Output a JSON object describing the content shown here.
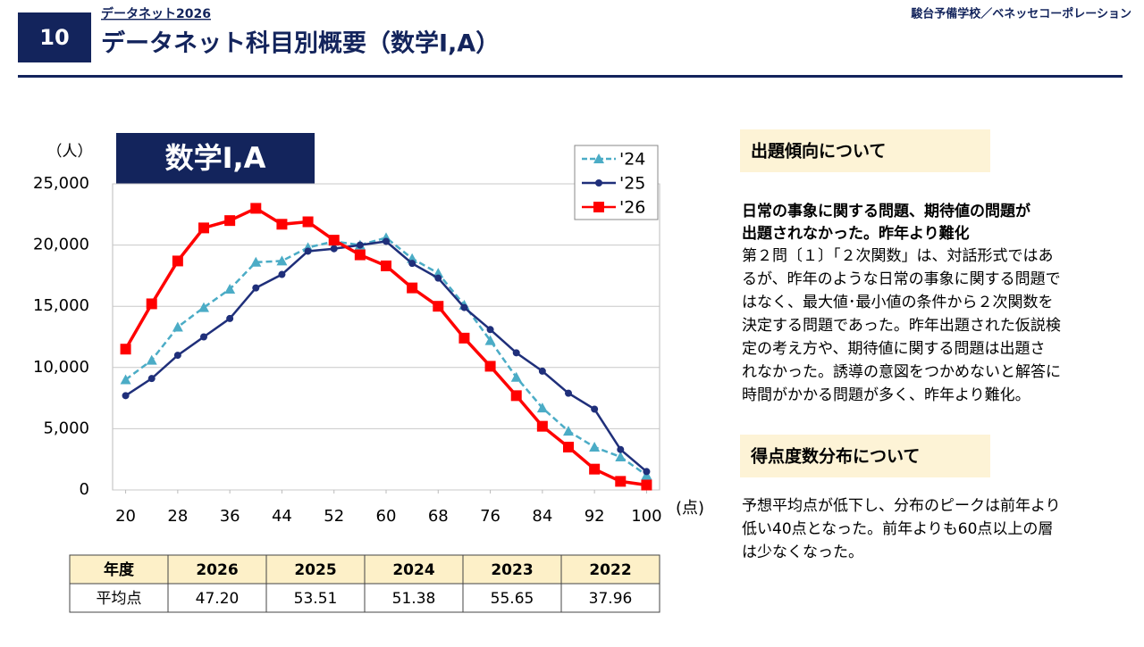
{
  "header": {
    "number": "10",
    "kicker": "データネット2026",
    "title": "データネット科目別概要（数学Ⅰ,A）",
    "source": "駿台予備学校／ベネッセコーポレーション"
  },
  "chart_data": {
    "type": "line",
    "title": "数学Ⅰ,A",
    "y_label": "（人）",
    "x_label": "(点)",
    "x": [
      20,
      24,
      28,
      32,
      36,
      40,
      44,
      48,
      52,
      56,
      60,
      64,
      68,
      72,
      76,
      80,
      84,
      88,
      92,
      96,
      100
    ],
    "xlim": [
      18,
      102
    ],
    "xticks": [
      20,
      28,
      36,
      44,
      52,
      60,
      68,
      76,
      84,
      92,
      100
    ],
    "ylim": [
      0,
      25000
    ],
    "yticks": [
      0,
      {
        "value": 5000,
        "label": "5,000"
      },
      {
        "value": 10000,
        "label": "10,000"
      },
      {
        "value": 15000,
        "label": "15,000"
      },
      {
        "value": 20000,
        "label": "20,000"
      },
      {
        "value": 25000,
        "label": "25,000"
      }
    ],
    "grid": true,
    "legend": "top-right",
    "series": [
      {
        "name": "'24",
        "color": "#4bacc6",
        "marker": "triangle",
        "dash": true,
        "values": [
          9000,
          10600,
          13300,
          14900,
          16400,
          18600,
          18700,
          19800,
          20300,
          20000,
          20600,
          18900,
          17700,
          15100,
          12200,
          9200,
          6700,
          4800,
          3500,
          2700,
          1200
        ]
      },
      {
        "name": "'25",
        "color": "#1f2f7a",
        "marker": "circle",
        "dash": false,
        "values": [
          7700,
          9100,
          11000,
          12500,
          14000,
          16500,
          17600,
          19500,
          19700,
          20000,
          20300,
          18500,
          17300,
          14900,
          13100,
          11200,
          9700,
          7900,
          6600,
          3300,
          1500
        ]
      },
      {
        "name": "'26",
        "color": "#ff0000",
        "marker": "square",
        "dash": false,
        "values": [
          11500,
          15200,
          18700,
          21400,
          22000,
          23000,
          21700,
          21900,
          20400,
          19200,
          18300,
          16500,
          15000,
          12400,
          10100,
          7700,
          5200,
          3500,
          1700,
          700,
          400
        ]
      }
    ]
  },
  "table": {
    "header": [
      "年度",
      "2026",
      "2025",
      "2024",
      "2023",
      "2022"
    ],
    "rows": [
      [
        "平均点",
        "47.20",
        "53.51",
        "51.38",
        "55.65",
        "37.96"
      ]
    ]
  },
  "sections": [
    {
      "heading": "出題傾向について",
      "lead": [
        "日常の事象に関する問題、期待値の問題が",
        "出題されなかった。昨年より難化"
      ],
      "body": [
        "第２問〔１〕「２次関数」は、対話形式ではあ",
        "るが、昨年のような日常の事象に関する問題で",
        "はなく、最大値･最小値の条件から２次関数を",
        "決定する問題であった。昨年出題された仮説検",
        "定の考え方や、期待値に関する問題は出題さ",
        "れなかった。誘導の意図をつかめないと解答に",
        "時間がかかる問題が多く、昨年より難化。"
      ]
    },
    {
      "heading": "得点度数分布について",
      "lead": [],
      "body": [
        "予想平均点が低下し、分布のピークは前年より",
        "低い40点となった。前年よりも60点以上の層",
        "は少なくなった。"
      ]
    }
  ]
}
